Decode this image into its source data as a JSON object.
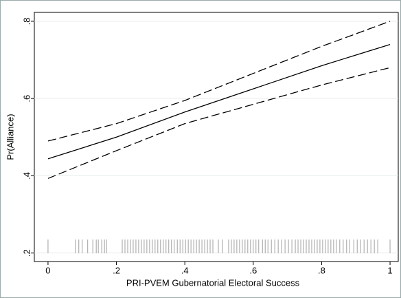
{
  "chart_data": {
    "type": "line",
    "x_label": "PRI-PVEM Gubernatorial Electoral Success",
    "y_label": "Pr(Alliance)",
    "x": [
      0,
      0.2,
      0.4,
      0.6,
      0.8,
      1
    ],
    "series": [
      {
        "color": "#000000",
        "dashed": false,
        "values": [
          0.444,
          0.5,
          0.565,
          0.625,
          0.685,
          0.74
        ]
      },
      {
        "color": "#000000",
        "dashed": true,
        "values": [
          0.49,
          0.535,
          0.595,
          0.665,
          0.735,
          0.8
        ]
      },
      {
        "color": "#000000",
        "dashed": true,
        "values": [
          0.393,
          0.465,
          0.535,
          0.585,
          0.635,
          0.68
        ]
      }
    ],
    "rug": {
      "color": "#a0a0a0",
      "x": [
        0,
        0.08,
        0.09,
        0.1,
        0.116,
        0.131,
        0.141,
        0.147,
        0.157,
        0.165,
        0.171,
        0.217,
        0.225,
        0.233,
        0.241,
        0.249,
        0.257,
        0.265,
        0.273,
        0.281,
        0.289,
        0.297,
        0.305,
        0.313,
        0.321,
        0.329,
        0.337,
        0.345,
        0.353,
        0.361,
        0.369,
        0.378,
        0.386,
        0.394,
        0.402,
        0.41,
        0.418,
        0.426,
        0.434,
        0.442,
        0.45,
        0.458,
        0.466,
        0.474,
        0.482,
        0.498,
        0.51,
        0.528,
        0.536,
        0.544,
        0.552,
        0.56,
        0.568,
        0.576,
        0.584,
        0.592,
        0.6,
        0.608,
        0.616,
        0.627,
        0.635,
        0.643,
        0.653,
        0.663,
        0.673,
        0.683,
        0.693,
        0.703,
        0.713,
        0.723,
        0.731,
        0.739,
        0.747,
        0.755,
        0.763,
        0.771,
        0.779,
        0.787,
        0.795,
        0.803,
        0.811,
        0.819,
        0.827,
        0.835,
        0.843,
        0.853,
        0.863,
        0.873,
        0.882,
        0.894,
        0.904,
        0.914,
        0.924,
        0.934,
        0.944,
        0.954,
        0.964,
        1
      ]
    },
    "xlim": [
      -0.04,
      1.024
    ],
    "ylim": [
      0.178,
      0.823
    ],
    "xticks": [
      0,
      {
        "value": 0.2,
        "label": ".2"
      },
      {
        "value": 0.4,
        "label": ".4"
      },
      {
        "value": 0.6,
        "label": ".6"
      },
      {
        "value": 0.8,
        "label": ".8"
      },
      1
    ],
    "yticks": [
      {
        "value": 0.2,
        "label": ".2"
      },
      {
        "value": 0.4,
        "label": ".4"
      },
      {
        "value": 0.6,
        "label": ".6"
      },
      {
        "value": 0.8,
        "label": ".8"
      }
    ],
    "grid": true
  }
}
